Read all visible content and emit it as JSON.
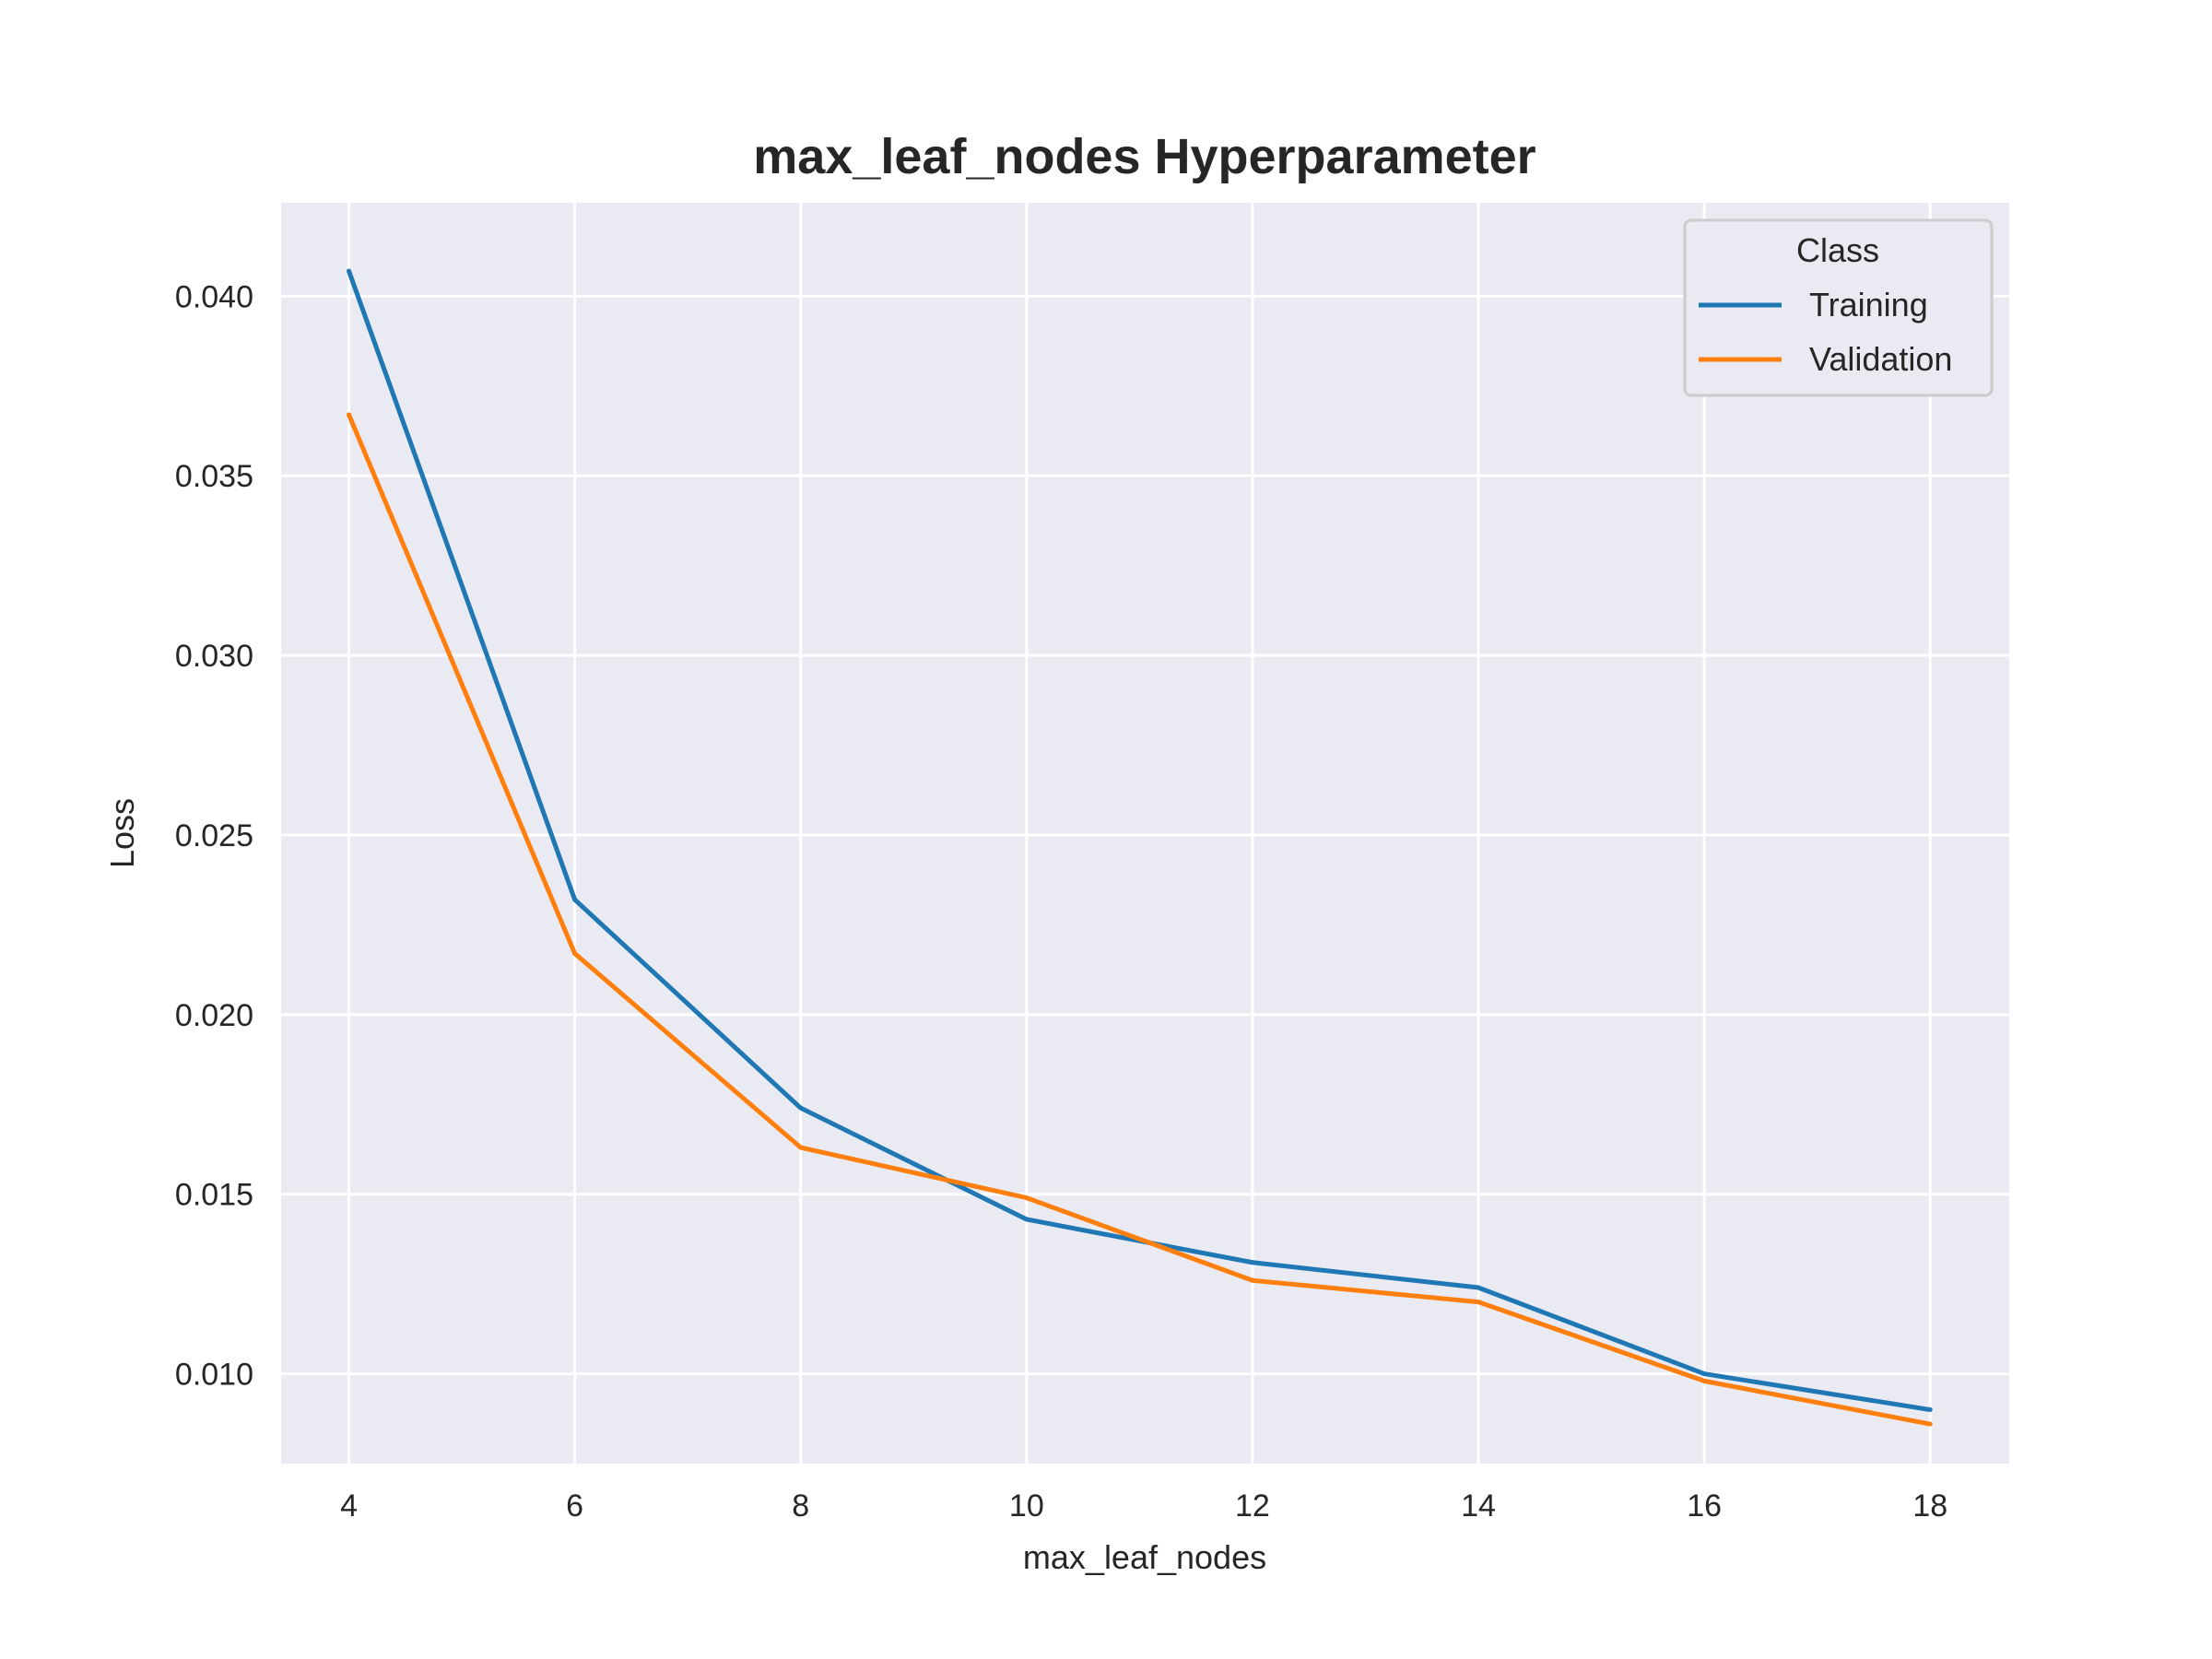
{
  "chart_data": {
    "type": "line",
    "title": "max_leaf_nodes Hyperparameter",
    "xlabel": "max_leaf_nodes",
    "ylabel": "Loss",
    "x": [
      4,
      6,
      8,
      10,
      12,
      14,
      16,
      18
    ],
    "xlim": [
      3.4,
      18.7
    ],
    "ylim": [
      0.0075,
      0.0426
    ],
    "xticks": [
      4,
      6,
      8,
      10,
      12,
      14,
      16,
      18
    ],
    "yticks": [
      0.01,
      0.015,
      0.02,
      0.025,
      0.03,
      0.035,
      0.04
    ],
    "ytick_labels": [
      "0.010",
      "0.015",
      "0.020",
      "0.025",
      "0.030",
      "0.035",
      "0.040"
    ],
    "grid": true,
    "legend": {
      "title": "Class",
      "placement": "top-right"
    },
    "background": "#eaeaf2",
    "series": [
      {
        "name": "Training",
        "color": "#1f77b4",
        "values": [
          0.0407,
          0.0232,
          0.0174,
          0.0143,
          0.0131,
          0.0124,
          0.01,
          0.009
        ]
      },
      {
        "name": "Validation",
        "color": "#ff7f0e",
        "values": [
          0.0367,
          0.0217,
          0.0163,
          0.0149,
          0.0126,
          0.012,
          0.0098,
          0.0086
        ]
      }
    ]
  }
}
